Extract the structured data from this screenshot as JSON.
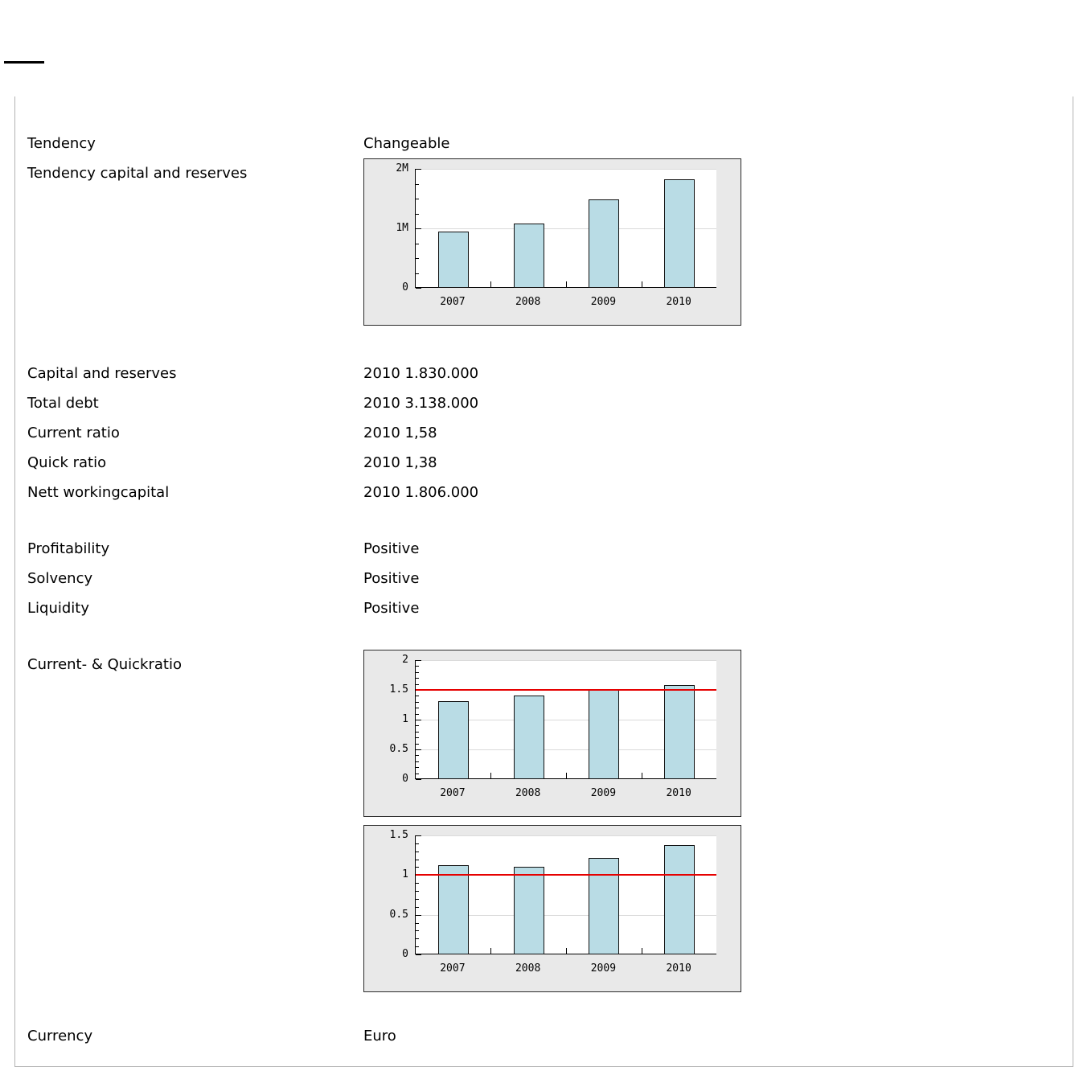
{
  "frame": {
    "rows": {
      "tendency": {
        "label": "Tendency",
        "value": "Changeable"
      },
      "tendency_chart": {
        "label": "Tendency capital and reserves"
      },
      "capital_and_reserves": {
        "label": "Capital and reserves",
        "value": "2010 1.830.000"
      },
      "total_debt": {
        "label": "Total debt",
        "value": "2010 3.138.000"
      },
      "current_ratio": {
        "label": "Current ratio",
        "value": "2010 1,58"
      },
      "quick_ratio": {
        "label": "Quick ratio",
        "value": "2010 1,38"
      },
      "nett_workingcapital": {
        "label": "Nett workingcapital",
        "value": "2010 1.806.000"
      },
      "profitability": {
        "label": "Profitability",
        "value": "Positive"
      },
      "solvency": {
        "label": "Solvency",
        "value": "Positive"
      },
      "liquidity": {
        "label": "Liquidity",
        "value": "Positive"
      },
      "ratio_charts": {
        "label": "Current- & Quickratio"
      },
      "currency": {
        "label": "Currency",
        "value": "Euro"
      }
    }
  },
  "chart_data": [
    {
      "type": "bar",
      "title": "Tendency capital and reserves",
      "categories": [
        "2007",
        "2008",
        "2009",
        "2010"
      ],
      "values": [
        950000,
        1080000,
        1490000,
        1830000
      ],
      "ylim": [
        0,
        2000000
      ],
      "yticks": [
        {
          "v": 0,
          "label": "0"
        },
        {
          "v": 1000000,
          "label": "1M"
        },
        {
          "v": 2000000,
          "label": "2M"
        }
      ],
      "y_minor_step": 250000,
      "bar_color": "#b9dce5",
      "grid": true,
      "legend": "none",
      "ref_line": null
    },
    {
      "type": "bar",
      "title": "Current ratio",
      "categories": [
        "2007",
        "2008",
        "2009",
        "2010"
      ],
      "values": [
        1.31,
        1.4,
        1.52,
        1.58
      ],
      "ylim": [
        0,
        2
      ],
      "yticks": [
        {
          "v": 0,
          "label": "0"
        },
        {
          "v": 0.5,
          "label": "0.5"
        },
        {
          "v": 1,
          "label": "1"
        },
        {
          "v": 1.5,
          "label": "1.5"
        },
        {
          "v": 2,
          "label": "2"
        }
      ],
      "y_minor_step": 0.1,
      "bar_color": "#b9dce5",
      "grid": true,
      "legend": "none",
      "ref_line": {
        "value": 1.5,
        "color": "#e60000"
      }
    },
    {
      "type": "bar",
      "title": "Quick ratio",
      "categories": [
        "2007",
        "2008",
        "2009",
        "2010"
      ],
      "values": [
        1.12,
        1.1,
        1.22,
        1.38
      ],
      "ylim": [
        0,
        1.5
      ],
      "yticks": [
        {
          "v": 0,
          "label": "0"
        },
        {
          "v": 0.5,
          "label": "0.5"
        },
        {
          "v": 1,
          "label": "1"
        },
        {
          "v": 1.5,
          "label": "1.5"
        }
      ],
      "y_minor_step": 0.1,
      "bar_color": "#b9dce5",
      "grid": true,
      "legend": "none",
      "ref_line": {
        "value": 1.0,
        "color": "#e60000"
      }
    }
  ]
}
